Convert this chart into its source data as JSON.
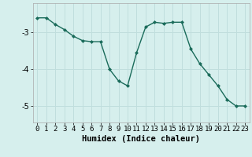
{
  "x": [
    0,
    1,
    2,
    3,
    4,
    5,
    6,
    7,
    8,
    9,
    10,
    11,
    12,
    13,
    14,
    15,
    16,
    17,
    18,
    19,
    20,
    21,
    22,
    23
  ],
  "y": [
    -2.6,
    -2.6,
    -2.78,
    -2.92,
    -3.1,
    -3.22,
    -3.25,
    -3.25,
    -4.0,
    -4.32,
    -4.45,
    -3.55,
    -2.85,
    -2.72,
    -2.75,
    -2.72,
    -2.72,
    -3.45,
    -3.85,
    -4.15,
    -4.45,
    -4.82,
    -5.0,
    -5.0
  ],
  "line_color": "#1a6b5a",
  "marker": "D",
  "marker_size": 2.0,
  "linewidth": 1.0,
  "xlabel": "Humidex (Indice chaleur)",
  "xlabel_fontsize": 7.5,
  "yticks": [
    -5,
    -4,
    -3
  ],
  "ylim": [
    -5.45,
    -2.2
  ],
  "xlim": [
    -0.5,
    23.5
  ],
  "bg_color": "#d6efed",
  "grid_color": "#c0dedd",
  "tick_fontsize": 6.5,
  "xlabel_fontweight": "bold"
}
